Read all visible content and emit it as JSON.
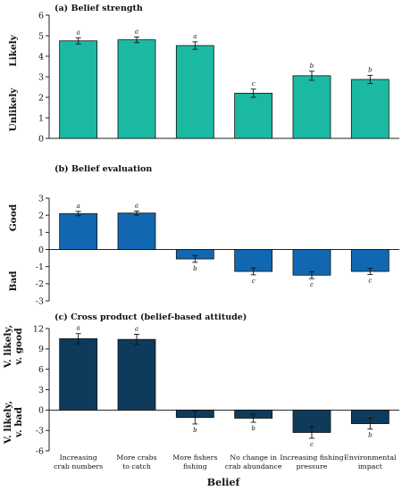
{
  "colors": {
    "panel_a": "#1bb9a2",
    "panel_b": "#1168b0",
    "panel_c": "#0e3b5c",
    "axis": "#222222"
  },
  "x_axis_title": "Belief",
  "categories": [
    [
      "Increasing",
      "crab numbers"
    ],
    [
      "More crabs",
      "to catch"
    ],
    [
      "More fishers",
      "fishing"
    ],
    [
      "No change in",
      "crab abundance"
    ],
    [
      "Increasing fishing",
      "pressure"
    ],
    [
      "Environmental",
      "impact"
    ]
  ],
  "chart_data": [
    {
      "type": "bar",
      "title": "(a) Belief strength",
      "ylabel_top": [
        "Likely"
      ],
      "ylabel_bottom": [
        "Unlikely"
      ],
      "ylim": [
        0,
        6
      ],
      "yticks": [
        0,
        1,
        2,
        3,
        4,
        5,
        6
      ],
      "values": [
        4.75,
        4.8,
        4.52,
        2.2,
        3.05,
        2.87
      ],
      "errors": [
        0.15,
        0.14,
        0.18,
        0.2,
        0.22,
        0.2
      ],
      "letters": [
        "a",
        "a",
        "a",
        "c",
        "b",
        "b"
      ],
      "color": "#1bb9a2"
    },
    {
      "type": "bar",
      "title": "(b) Belief evaluation",
      "ylabel_top": [
        "Good"
      ],
      "ylabel_bottom": [
        "Bad"
      ],
      "ylim": [
        -3,
        3
      ],
      "yticks": [
        -3,
        -2,
        -1,
        0,
        1,
        2,
        3
      ],
      "values": [
        2.1,
        2.13,
        -0.55,
        -1.28,
        -1.5,
        -1.28
      ],
      "errors": [
        0.13,
        0.12,
        0.2,
        0.2,
        0.2,
        0.18
      ],
      "letters": [
        "a",
        "a",
        "b",
        "c",
        "c",
        "c"
      ],
      "color": "#1168b0"
    },
    {
      "type": "bar",
      "title": "(c) Cross product (belief-based attitude)",
      "ylabel_top": [
        "V. likely,",
        "v. good"
      ],
      "ylabel_bottom": [
        "V. likely,",
        "v. bad"
      ],
      "ylim": [
        -6,
        12
      ],
      "yticks": [
        -6,
        -3,
        0,
        3,
        6,
        9,
        12
      ],
      "values": [
        10.5,
        10.4,
        -1.1,
        -1.2,
        -3.3,
        -2.0
      ],
      "errors": [
        0.75,
        0.75,
        0.95,
        0.6,
        0.85,
        0.8
      ],
      "letters": [
        "a",
        "a",
        "b",
        "b",
        "c",
        "b"
      ],
      "color": "#0e3b5c"
    }
  ]
}
